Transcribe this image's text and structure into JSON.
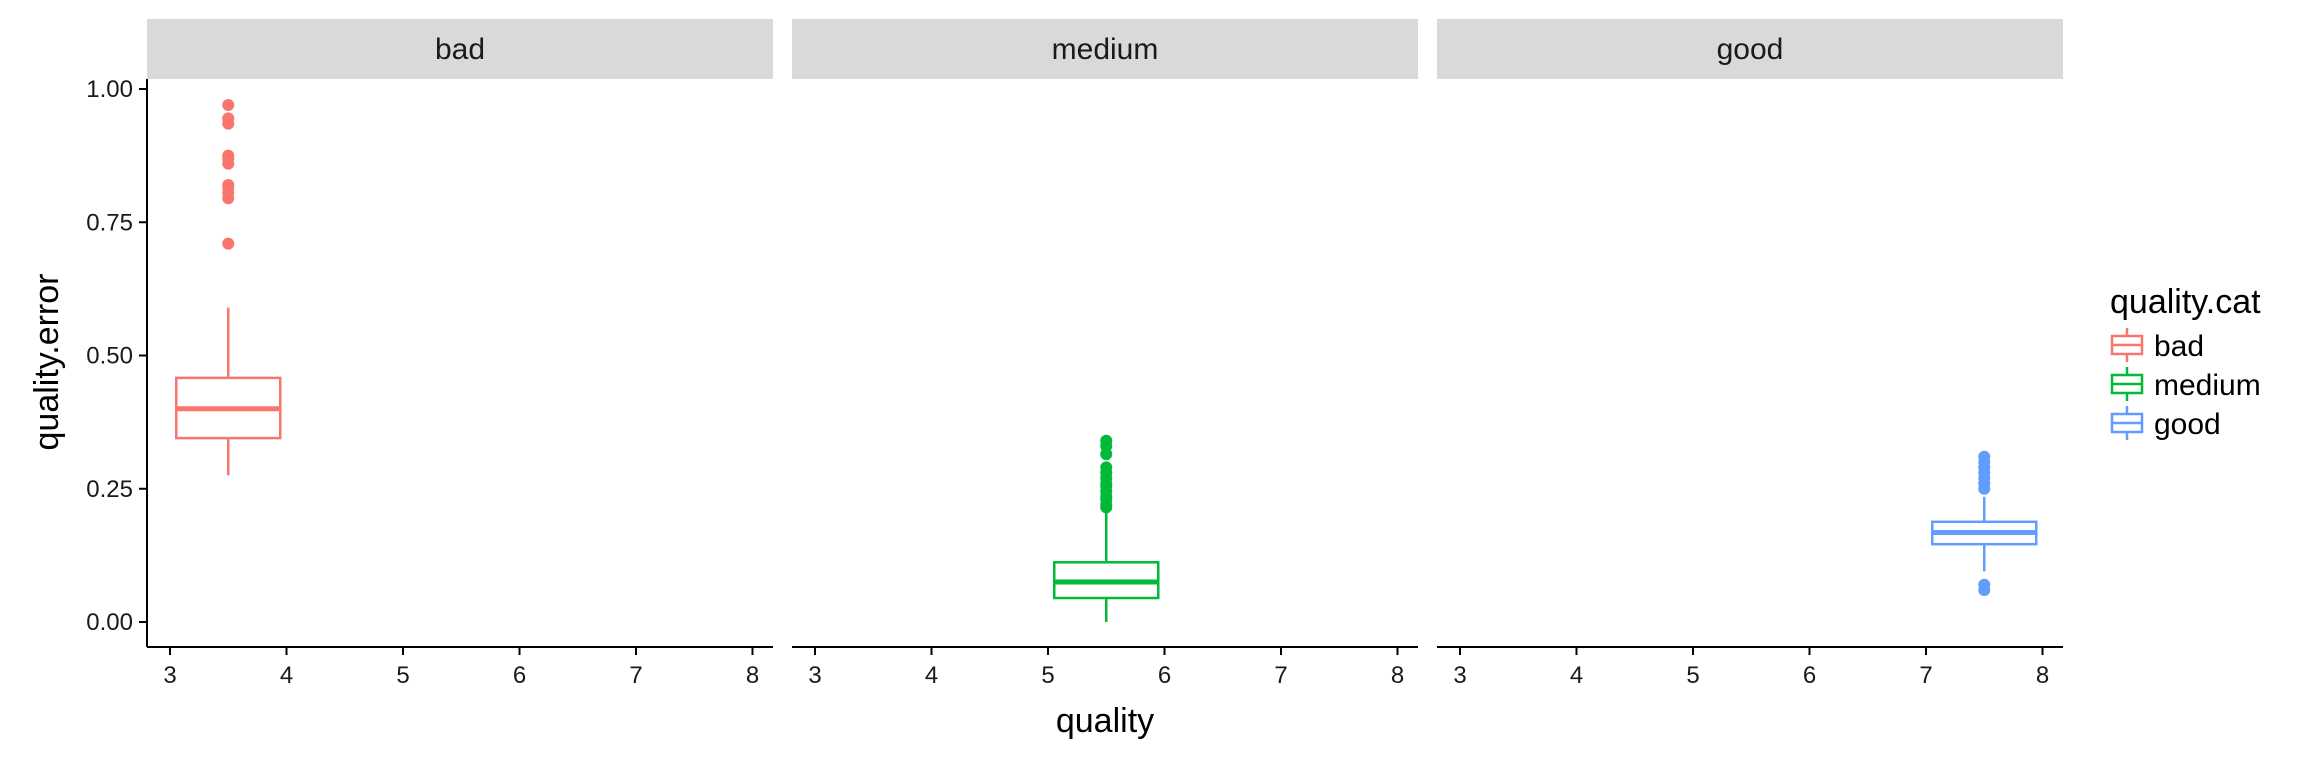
{
  "chart_data": {
    "type": "boxplot",
    "facet_var": "quality.cat",
    "panels": [
      "bad",
      "medium",
      "good"
    ],
    "xlabel": "quality",
    "ylabel": "quality.error",
    "xlim": [
      3,
      8
    ],
    "ylim": [
      0,
      1
    ],
    "xticks": [
      "3",
      "4",
      "5",
      "6",
      "7",
      "8"
    ],
    "yticks": [
      "0.00",
      "0.25",
      "0.50",
      "0.75",
      "1.00"
    ],
    "grid": false,
    "legend": {
      "title": "quality.cat",
      "position": "right",
      "items": [
        "bad",
        "medium",
        "good"
      ]
    },
    "series": [
      {
        "name": "bad",
        "color": "#F8766D",
        "x": 3.5,
        "q1": 0.345,
        "median": 0.4,
        "q3": 0.458,
        "whisker_low": 0.275,
        "whisker_high": 0.59,
        "outliers": [
          0.71,
          0.795,
          0.805,
          0.815,
          0.82,
          0.86,
          0.87,
          0.875,
          0.935,
          0.945,
          0.97
        ]
      },
      {
        "name": "medium",
        "color": "#00BA38",
        "x": 5.5,
        "q1": 0.045,
        "median": 0.075,
        "q3": 0.112,
        "whisker_low": 0.0,
        "whisker_high": 0.21,
        "outliers": [
          0.215,
          0.22,
          0.23,
          0.235,
          0.245,
          0.255,
          0.26,
          0.27,
          0.28,
          0.29,
          0.315,
          0.33,
          0.34
        ]
      },
      {
        "name": "good",
        "color": "#619CFF",
        "x": 7.5,
        "q1": 0.146,
        "median": 0.168,
        "q3": 0.188,
        "whisker_low": 0.095,
        "whisker_high": 0.235,
        "outliers": [
          0.06,
          0.07,
          0.25,
          0.26,
          0.27,
          0.28,
          0.29,
          0.3,
          0.31
        ]
      }
    ]
  }
}
